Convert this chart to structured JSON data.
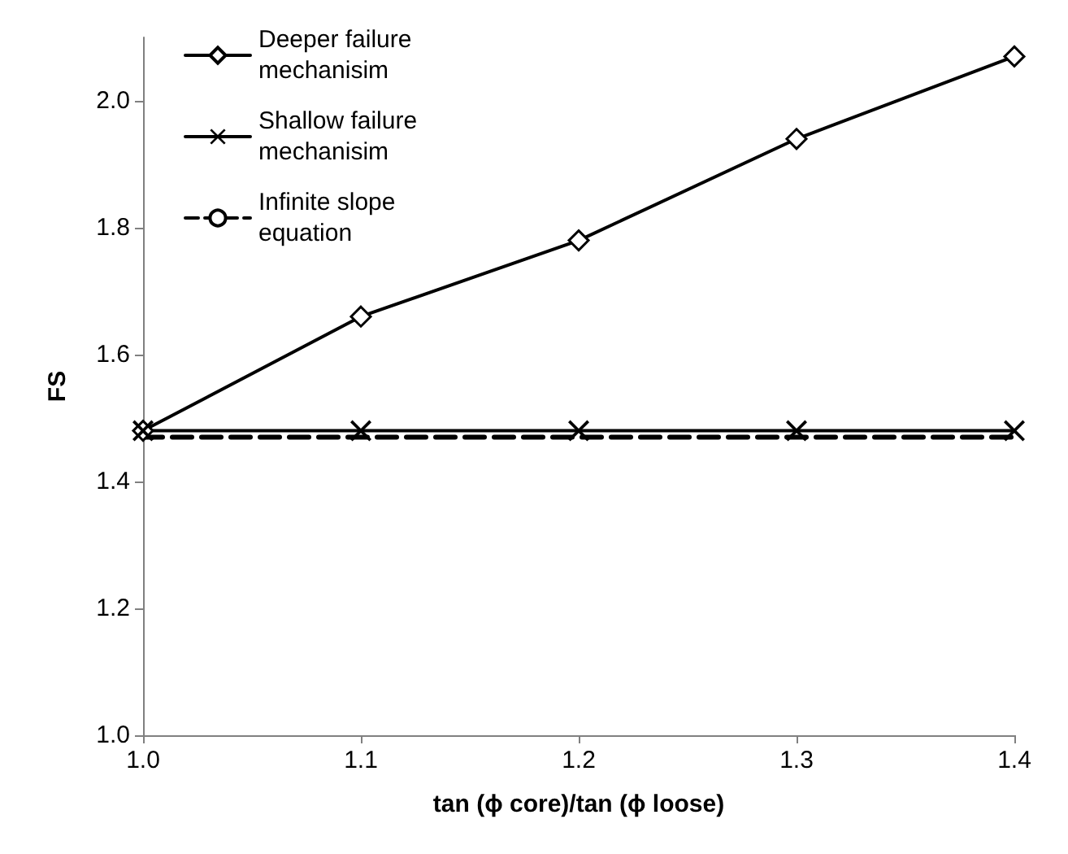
{
  "chart_data": {
    "type": "line",
    "xlabel": "tan (ϕ core)/tan (ϕ loose)",
    "ylabel": "FS",
    "x": [
      1.0,
      1.1,
      1.2,
      1.3,
      1.4
    ],
    "series": [
      {
        "name": "Deeper failure mechanisim",
        "color": "#000000",
        "values": [
          1.48,
          1.66,
          1.78,
          1.94,
          2.07
        ],
        "marker": "diamond",
        "line_style": "solid"
      },
      {
        "name": "Shallow failure mechanisim",
        "color": "#000000",
        "values": [
          1.48,
          1.48,
          1.48,
          1.48,
          1.48
        ],
        "marker": "cross",
        "line_style": "solid"
      },
      {
        "name": "Infinite slope equation",
        "color": "#000000",
        "values": [
          1.47,
          1.47,
          1.47,
          1.47,
          1.47
        ],
        "marker": "none",
        "line_style": "dashed"
      }
    ],
    "xlim": [
      1.0,
      1.4
    ],
    "xticks": [
      {
        "value": 1.0,
        "label": "1.0"
      },
      {
        "value": 1.1,
        "label": "1.1"
      },
      {
        "value": 1.2,
        "label": "1.2"
      },
      {
        "value": 1.3,
        "label": "1.3"
      },
      {
        "value": 1.4,
        "label": "1.4"
      }
    ],
    "ylim": [
      1.0,
      2.1
    ],
    "yticks": [
      {
        "value": 1.0,
        "label": "1.0"
      },
      {
        "value": 1.2,
        "label": "1.2"
      },
      {
        "value": 1.4,
        "label": "1.4"
      },
      {
        "value": 1.6,
        "label": "1.6"
      },
      {
        "value": 1.8,
        "label": "1.8"
      },
      {
        "value": 2.0,
        "label": "2.0"
      }
    ],
    "grid": false,
    "legend": "top left"
  }
}
